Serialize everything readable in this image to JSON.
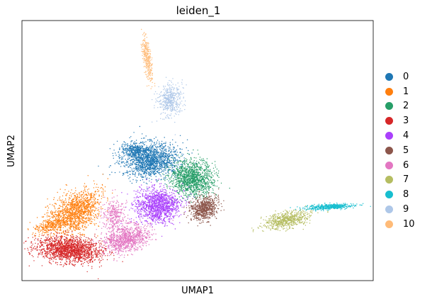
{
  "chart_data": {
    "type": "scatter",
    "title": "leiden_1",
    "xlabel": "UMAP1",
    "ylabel": "UMAP2",
    "grid": false,
    "legend_position": "right",
    "series": [
      {
        "name": "0",
        "color": "#1f77b4"
      },
      {
        "name": "1",
        "color": "#ff7f0e"
      },
      {
        "name": "2",
        "color": "#279e68"
      },
      {
        "name": "3",
        "color": "#d62728"
      },
      {
        "name": "4",
        "color": "#aa40fc"
      },
      {
        "name": "5",
        "color": "#8c564b"
      },
      {
        "name": "6",
        "color": "#e377c2"
      },
      {
        "name": "7",
        "color": "#b5bd61"
      },
      {
        "name": "8",
        "color": "#17becf"
      },
      {
        "name": "9",
        "color": "#aec7e8"
      },
      {
        "name": "10",
        "color": "#ffbb78"
      }
    ]
  }
}
